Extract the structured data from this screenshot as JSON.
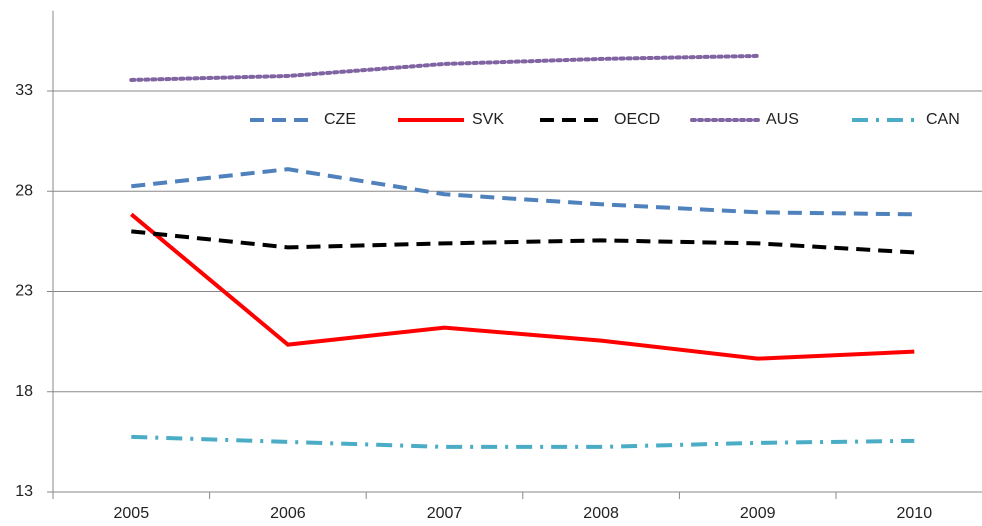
{
  "chart_data": {
    "type": "line",
    "categories": [
      "2005",
      "2006",
      "2007",
      "2008",
      "2009",
      "2010"
    ],
    "series": [
      {
        "name": "CZE",
        "color": "#4f81bd",
        "dash": "dashed",
        "values": [
          28.25,
          29.1,
          27.85,
          27.35,
          26.95,
          26.85
        ]
      },
      {
        "name": "SVK",
        "color": "#ff0000",
        "dash": "solid",
        "values": [
          26.85,
          20.35,
          21.2,
          20.55,
          19.65,
          20.0
        ]
      },
      {
        "name": "OECD",
        "color": "#000000",
        "dash": "dashed",
        "values": [
          26.0,
          25.2,
          25.4,
          25.55,
          25.4,
          24.95
        ]
      },
      {
        "name": "AUS",
        "color": "#8064a2",
        "dash": "dotted",
        "values": [
          33.55,
          33.75,
          34.35,
          34.6,
          34.75,
          null
        ]
      },
      {
        "name": "CAN",
        "color": "#4bacc6",
        "dash": "dashdot",
        "values": [
          15.75,
          15.5,
          15.25,
          15.25,
          15.45,
          15.55
        ]
      }
    ],
    "ylim": [
      13,
      37
    ],
    "yticks": [
      13,
      18,
      23,
      28,
      33
    ],
    "grid": true,
    "legend": "top-right"
  }
}
